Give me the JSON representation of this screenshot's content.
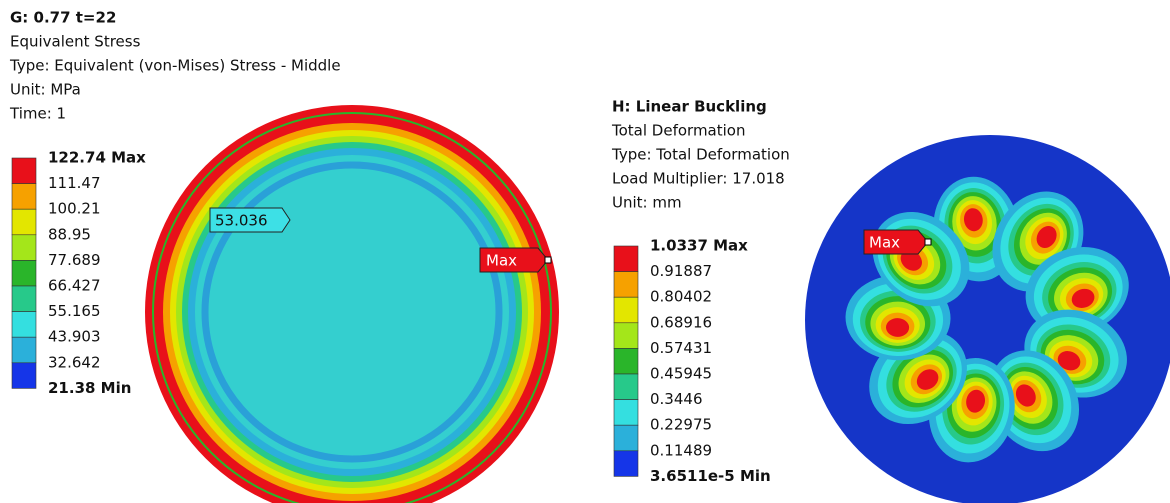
{
  "left": {
    "header": [
      "G: 0.77  t=22",
      "Equivalent Stress",
      "Type: Equivalent (von-Mises) Stress - Middle",
      "Unit: MPa",
      "Time: 1"
    ],
    "legend": [
      "122.74 Max",
      "111.47",
      "100.21",
      "88.95",
      "77.689",
      "66.427",
      "55.165",
      "43.903",
      "32.642",
      "21.38 Min"
    ],
    "probes": [
      "53.036",
      "Max"
    ]
  },
  "right": {
    "header": [
      "H: Linear Buckling",
      "Total Deformation",
      "Type: Total Deformation",
      "Load Multiplier: 17.018",
      "Unit: mm"
    ],
    "legend": [
      "1.0337 Max",
      "0.91887",
      "0.80402",
      "0.68916",
      "0.57431",
      "0.45945",
      "0.3446",
      "0.22975",
      "0.11489",
      "3.6511e-5 Min"
    ],
    "probes": [
      "Max"
    ]
  }
}
